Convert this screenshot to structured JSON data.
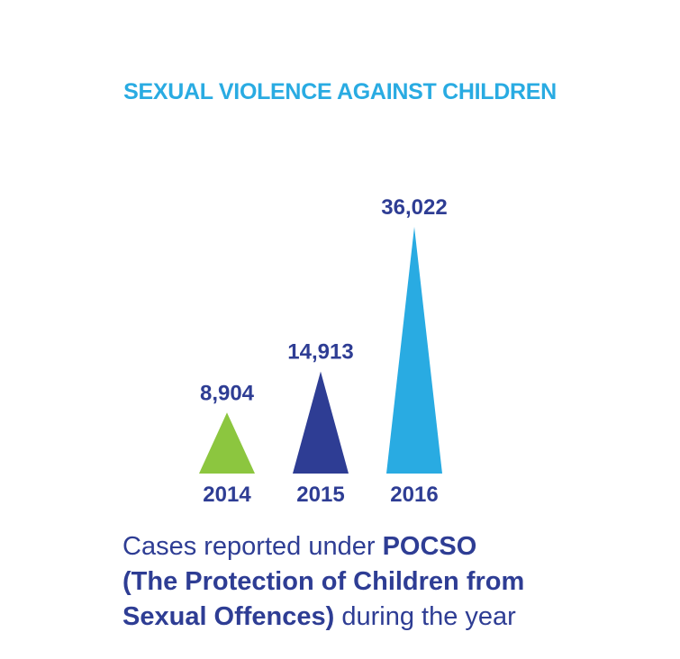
{
  "chart_data": {
    "type": "bar",
    "title": "SEXUAL VIOLENCE AGAINST CHILDREN",
    "categories": [
      "2014",
      "2015",
      "2016"
    ],
    "values": [
      8904,
      14913,
      36022
    ],
    "value_labels": [
      "8,904",
      "14,913",
      "36,022"
    ],
    "bar_colors": [
      "#8cc63f",
      "#2e3d94",
      "#29abe2"
    ],
    "ylim": [
      0,
      36022
    ],
    "grid": false,
    "xlabel": "",
    "ylabel": ""
  },
  "colors": {
    "title": "#29abe2",
    "labels": "#2e3d94"
  },
  "caption": {
    "line1_regular": "Cases reported under ",
    "line1_bold": "POCSO",
    "line2_bold": "(The Protection of Children from",
    "line3_bold": "Sexual Offences)",
    "line3_regular": " during the year"
  }
}
